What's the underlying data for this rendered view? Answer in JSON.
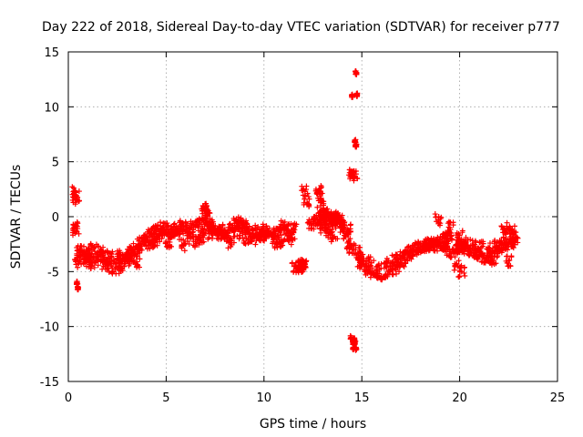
{
  "chart_data": {
    "type": "scatter",
    "title": "Day 222 of 2018, Sidereal Day-to-day VTEC variation (SDTVAR) for receiver p777",
    "xlabel": "GPS time / hours",
    "ylabel": "SDTVAR / TECUs",
    "xlim": [
      0,
      25
    ],
    "ylim": [
      -15,
      15
    ],
    "xticks": [
      0,
      5,
      10,
      15,
      20,
      25
    ],
    "yticks": [
      -15,
      -10,
      -5,
      0,
      5,
      10,
      15
    ],
    "grid": true,
    "marker": "plus",
    "color": "#ff0000",
    "series": [
      {
        "name": "SDTVAR",
        "x": [
          0.35,
          0.4,
          0.38,
          0.33,
          0.4,
          0.45,
          0.5,
          0.6,
          0.8,
          1.0,
          1.2,
          1.4,
          1.6,
          1.8,
          2.0,
          2.2,
          2.4,
          2.6,
          2.8,
          3.0,
          3.2,
          3.4,
          3.6,
          3.8,
          4.0,
          4.2,
          4.4,
          4.6,
          4.8,
          5.0,
          5.2,
          5.4,
          5.6,
          5.8,
          6.0,
          6.2,
          6.4,
          6.6,
          6.8,
          7.0,
          7.2,
          7.4,
          7.6,
          7.8,
          8.0,
          8.2,
          8.4,
          8.6,
          8.8,
          9.0,
          9.2,
          9.4,
          9.6,
          9.8,
          10.0,
          10.2,
          10.4,
          10.6,
          10.8,
          11.0,
          11.2,
          11.4,
          11.6,
          11.8,
          12.0,
          12.2,
          12.4,
          12.6,
          12.8,
          13.0,
          13.2,
          13.4,
          13.6,
          13.8,
          14.0,
          14.2,
          14.4,
          14.5,
          14.55,
          14.6,
          14.65,
          14.7,
          14.75,
          14.5,
          14.55,
          14.6,
          14.65,
          14.7,
          14.8,
          14.9,
          15.0,
          15.2,
          15.4,
          15.6,
          15.8,
          16.0,
          16.2,
          16.4,
          16.6,
          16.8,
          17.0,
          17.2,
          17.4,
          17.6,
          17.8,
          18.0,
          18.2,
          18.4,
          18.6,
          18.8,
          19.0,
          19.2,
          19.4,
          19.6,
          19.8,
          20.0,
          20.2,
          20.4,
          20.6,
          20.8,
          21.0,
          21.2,
          21.4,
          21.6,
          21.8,
          22.0,
          22.2,
          22.4,
          22.6,
          22.8,
          0.6,
          0.9,
          1.3,
          1.7,
          2.1,
          2.5,
          2.9,
          3.3,
          3.7,
          4.1,
          4.5,
          4.9,
          5.3,
          5.7,
          6.1,
          6.5,
          6.9,
          7.3,
          7.7,
          8.1,
          8.5,
          8.9,
          9.3,
          9.7,
          10.1,
          10.5,
          10.9,
          11.3,
          12.9,
          13.1,
          13.3,
          13.5,
          13.7,
          13.9,
          14.1,
          14.3,
          15.1,
          15.5,
          15.9,
          16.3,
          16.7,
          17.1,
          17.5,
          17.9,
          18.3,
          18.7,
          19.1,
          19.5,
          19.9,
          20.3,
          20.7,
          21.1,
          21.5,
          21.9,
          22.3,
          22.7,
          0.5,
          1.1,
          1.9,
          2.7,
          3.5,
          4.3,
          5.1,
          5.9,
          6.7,
          7.5,
          8.3,
          9.1,
          9.9,
          10.7,
          11.5,
          18.5,
          19.3,
          20.1,
          20.9,
          21.7,
          22.5,
          6.9,
          7.0,
          7.1,
          3.1,
          4.5,
          18.9,
          19.5,
          20.0,
          19.9,
          20.1,
          12.1,
          11.9,
          11.8,
          11.95,
          12.05,
          12.8,
          12.85,
          12.9,
          13.0,
          13.2,
          13.4,
          13.6,
          14.45,
          14.55,
          14.6,
          14.7,
          14.5,
          22.3,
          22.5,
          22.7
        ],
        "y": [
          2.3,
          1.8,
          1.6,
          -1.0,
          -1.3,
          -6.0,
          -6.5,
          -3.5,
          -3.8,
          -4.0,
          -4.2,
          -3.9,
          -3.5,
          -3.7,
          -3.9,
          -4.5,
          -4.8,
          -4.2,
          -3.8,
          -4.0,
          -3.5,
          -3.0,
          -2.5,
          -2.2,
          -1.8,
          -1.5,
          -1.3,
          -1.2,
          -1.0,
          -1.1,
          -1.4,
          -1.2,
          -1.0,
          -0.9,
          -1.0,
          -1.1,
          -0.9,
          -0.8,
          -0.7,
          -0.6,
          -0.8,
          -0.9,
          -1.2,
          -1.5,
          -1.2,
          -1.0,
          -0.8,
          -0.5,
          -0.6,
          -0.9,
          -1.1,
          -1.3,
          -1.5,
          -1.4,
          -1.2,
          -1.3,
          -1.6,
          -1.4,
          -1.0,
          -0.8,
          -1.2,
          -1.5,
          -4.5,
          -4.6,
          -4.5,
          1.3,
          -0.6,
          -0.3,
          -0.5,
          -1.0,
          -0.6,
          -0.4,
          -0.2,
          -0.5,
          -0.9,
          -1.5,
          -2.5,
          3.8,
          4.0,
          3.7,
          6.9,
          6.5,
          11.1,
          -3.0,
          -12.0,
          -11.2,
          -11.5,
          13.1,
          -3.3,
          -4.0,
          -4.5,
          -4.8,
          -5.0,
          -5.2,
          -5.5,
          -5.6,
          -5.4,
          -5.0,
          -4.8,
          -4.5,
          -4.2,
          -3.8,
          -3.5,
          -3.2,
          -3.0,
          -2.8,
          -2.6,
          -2.5,
          -2.5,
          -2.6,
          -2.7,
          -2.8,
          -3.0,
          -3.2,
          -3.0,
          -2.8,
          -2.9,
          -3.1,
          -3.3,
          -3.4,
          -3.5,
          -3.7,
          -3.8,
          -3.6,
          -3.2,
          -2.9,
          -2.6,
          -2.4,
          -2.3,
          -2.2,
          -3.0,
          -3.2,
          -2.9,
          -3.1,
          -3.4,
          -3.6,
          -3.8,
          -3.2,
          -2.9,
          -2.6,
          -2.0,
          -1.7,
          -1.5,
          -1.6,
          -2.0,
          -2.3,
          -1.9,
          -1.5,
          -1.6,
          -1.7,
          -1.3,
          -1.5,
          -1.8,
          -2.0,
          -1.7,
          -1.9,
          -2.2,
          -2.0,
          -0.2,
          0.2,
          0.1,
          -0.1,
          0.0,
          -0.4,
          -0.8,
          -1.2,
          -3.8,
          -4.2,
          -4.8,
          -4.3,
          -3.9,
          -3.5,
          -3.1,
          -2.9,
          -2.7,
          -2.3,
          -2.0,
          -1.8,
          -2.1,
          -2.4,
          -2.6,
          -2.8,
          -2.9,
          -2.7,
          -2.5,
          -2.3,
          -4.1,
          -3.5,
          -4.3,
          -4.9,
          -4.1,
          -2.4,
          -2.3,
          -2.6,
          -2.2,
          -1.4,
          -2.4,
          -2.0,
          -1.8,
          -2.3,
          -1.1,
          -2.3,
          -2.0,
          -2.7,
          -3.2,
          -3.9,
          -4.0,
          0.8,
          0.5,
          0.2,
          -3.1,
          -2.1,
          -0.3,
          -1.0,
          -1.7,
          -4.5,
          -5.0,
          2.3,
          -4.5,
          -4.6,
          -4.4,
          -4.5,
          2.4,
          1.9,
          1.0,
          0.2,
          -1.2,
          -1.5,
          -1.8,
          -11.0,
          -11.5,
          -11.3,
          -12.0,
          11.0,
          -1.2,
          -1.1,
          -1.3
        ]
      }
    ]
  }
}
